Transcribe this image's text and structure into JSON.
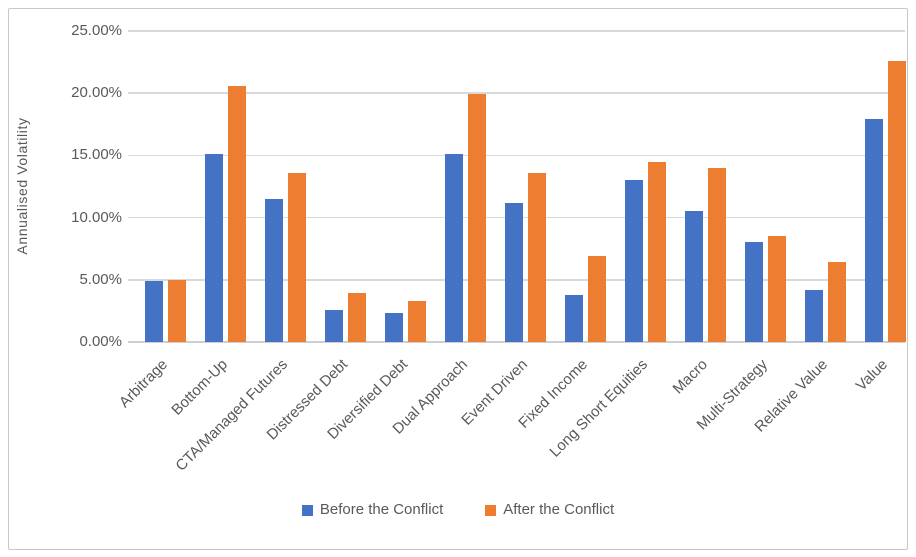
{
  "chart_data": {
    "type": "bar",
    "title": "",
    "xlabel": "",
    "ylabel": "Annualised Volatility",
    "unit": "%",
    "ylim": [
      0,
      25
    ],
    "ytick_step": 5,
    "ytick_labels": [
      "0.00%",
      "5.00%",
      "10.00%",
      "15.00%",
      "20.00%",
      "25.00%"
    ],
    "grid": true,
    "legend_position": "bottom",
    "categories": [
      "Arbitrage",
      "Bottom-Up",
      "CTA/Managed Futures",
      "Distressed Debt",
      "Diversified Debt",
      "Dual Approach",
      "Event Driven",
      "Fixed Income",
      "Long Short Equities",
      "Macro",
      "Multi-Strategy",
      "Relative Value",
      "Value"
    ],
    "series": [
      {
        "name": "Before the Conflict",
        "color": "#4472C4",
        "values": [
          4.9,
          15.1,
          11.5,
          2.6,
          2.3,
          15.1,
          11.2,
          3.8,
          13.0,
          10.5,
          8.0,
          4.2,
          17.9
        ]
      },
      {
        "name": "After the Conflict",
        "color": "#ED7D31",
        "values": [
          5.0,
          20.6,
          13.6,
          3.9,
          3.3,
          19.9,
          13.6,
          6.9,
          14.5,
          14.0,
          8.5,
          6.4,
          22.6
        ]
      }
    ],
    "colors": {
      "gridline": "#D9D9D9",
      "text": "#595959",
      "frame_border": "#C8C8C8",
      "background": "#FFFFFF"
    }
  }
}
